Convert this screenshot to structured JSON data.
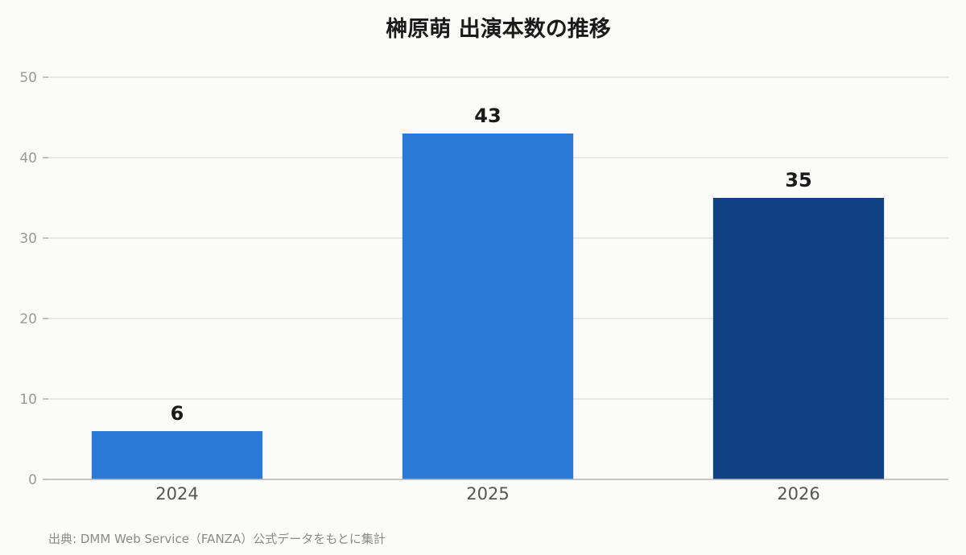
{
  "chart_data": {
    "type": "bar",
    "title": "榊原萌 出演本数の推移",
    "xlabel": "",
    "ylabel": "",
    "categories": [
      "2024",
      "2025",
      "2026"
    ],
    "values": [
      6,
      43,
      35
    ],
    "bar_colors": [
      "#2a79d6",
      "#2a79d6",
      "#114185"
    ],
    "ylim": [
      0,
      50
    ],
    "yticks": [
      0,
      10,
      20,
      30,
      40,
      50
    ],
    "grid": true,
    "legend": "none"
  },
  "source_note": "出典: DMM Web Service（FANZA）公式データをもとに集計"
}
